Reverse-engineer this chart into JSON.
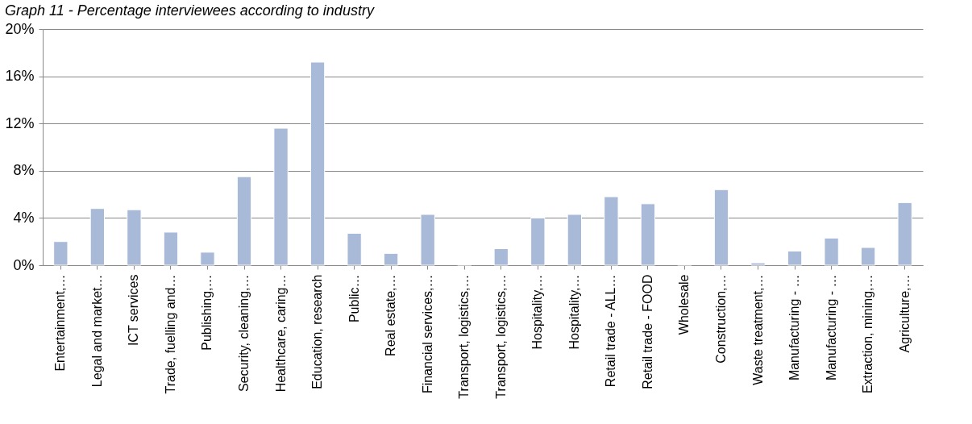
{
  "chart_data": {
    "type": "bar",
    "title": "Graph 11 - Percentage interviewees according to industry",
    "categories": [
      "Entertainment,…",
      "Legal and market…",
      "ICT services",
      "Trade, fuelling and…",
      "Publishing,…",
      "Security, cleaning,…",
      "Healthcare, caring…",
      "Education, research",
      "Public…",
      "Real estate,…",
      "Financial services,…",
      "Transport, logistics,…",
      "Transport, logistics,…",
      "Hospitality,…",
      "Hospitality,…",
      "Retail trade - ALL…",
      "Retail trade - FOOD",
      "Wholesale",
      "Construction,…",
      "Waste treatment,…",
      "Manufacturing - …",
      "Manufacturing - …",
      "Extraction, mining,…",
      "Agriculture,…"
    ],
    "values": [
      2.0,
      4.8,
      4.7,
      2.8,
      1.1,
      7.5,
      11.6,
      17.2,
      2.7,
      1.0,
      4.3,
      0.05,
      1.4,
      4.0,
      4.3,
      5.8,
      5.2,
      0.05,
      6.4,
      0.2,
      1.2,
      2.3,
      1.5,
      5.3
    ],
    "color": "#a9b9d8",
    "ylim": [
      0,
      20
    ],
    "yticks": [
      {
        "value": 0,
        "label": "0%"
      },
      {
        "value": 4,
        "label": "4%"
      },
      {
        "value": 8,
        "label": "8%"
      },
      {
        "value": 12,
        "label": "12%"
      },
      {
        "value": 16,
        "label": "16%"
      },
      {
        "value": 20,
        "label": "20%"
      }
    ],
    "grid": "y"
  }
}
